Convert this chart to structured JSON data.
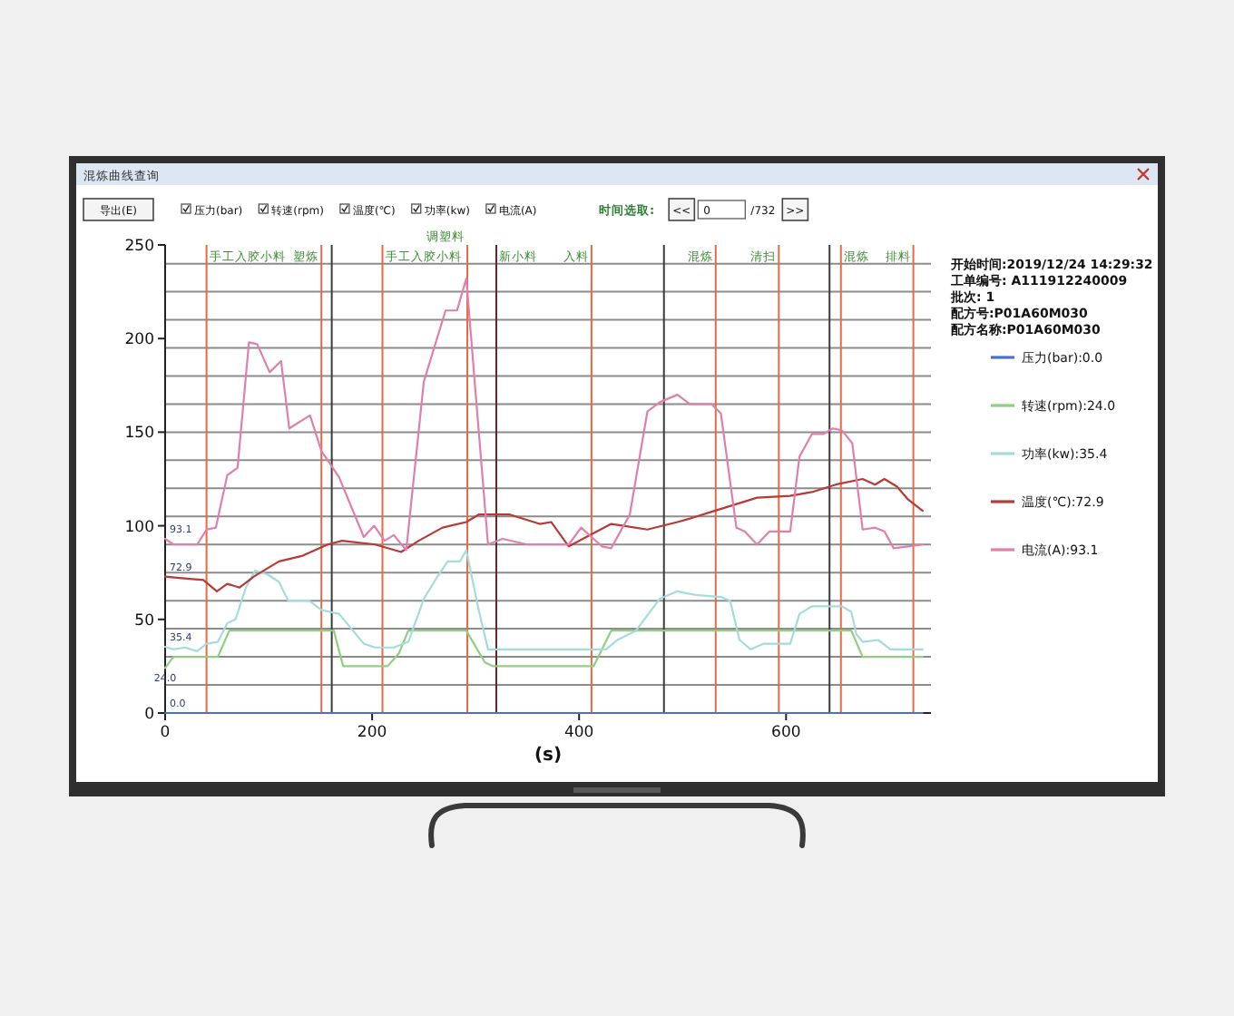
{
  "chart_data": {
    "type": "line",
    "title": "混炼曲线查询",
    "xlabel": "(s)",
    "xlim": [
      0,
      740
    ],
    "xticks": [
      0,
      200,
      400,
      600
    ],
    "ylim": [
      0,
      250
    ],
    "yticks": [
      0,
      50,
      100,
      150,
      200,
      250
    ],
    "legend": "right",
    "series": [
      {
        "name": "压力(bar):0.0",
        "color": "#4a6fd0",
        "x": [
          0,
          732
        ],
        "values": [
          0,
          0
        ]
      },
      {
        "name": "转速(rpm):24.0",
        "color": "#8fcf80",
        "x": [
          0,
          8,
          51,
          62,
          163,
          172,
          215,
          226,
          235,
          291,
          309,
          317,
          414,
          431,
          663,
          674,
          732
        ],
        "values": [
          24,
          30,
          30,
          44,
          44,
          25,
          25,
          32,
          44,
          44,
          27,
          25,
          25,
          44,
          44,
          30,
          30
        ]
      },
      {
        "name": "功率(kw):35.4",
        "color": "#a3dcdc",
        "x": [
          0,
          8,
          19,
          31,
          40,
          51,
          60,
          68,
          78,
          87,
          99,
          110,
          119,
          139,
          151,
          168,
          180,
          192,
          203,
          221,
          235,
          250,
          261,
          273,
          285,
          291,
          303,
          312,
          426,
          437,
          455,
          478,
          495,
          513,
          537,
          546,
          555,
          566,
          578,
          604,
          613,
          625,
          654,
          663,
          668,
          674,
          689,
          701,
          732
        ],
        "values": [
          35.4,
          34,
          35,
          33,
          37,
          38,
          48,
          50,
          67,
          76,
          74,
          70,
          60,
          60,
          55,
          53,
          45,
          37,
          35,
          35,
          38,
          61,
          71,
          81,
          81,
          87,
          55,
          34,
          34,
          39,
          44,
          61,
          65,
          63,
          62,
          60,
          39,
          34,
          37,
          37,
          53,
          57,
          57,
          54,
          42,
          38,
          39,
          34,
          34
        ]
      },
      {
        "name": "温度(℃):72.9",
        "color": "#b93a35",
        "x": [
          0,
          16,
          37,
          50,
          60,
          72,
          86,
          110,
          133,
          157,
          171,
          203,
          228,
          245,
          268,
          291,
          303,
          333,
          362,
          373,
          390,
          431,
          443,
          466,
          495,
          508,
          531,
          572,
          604,
          625,
          648,
          674,
          686,
          695,
          707,
          718,
          732
        ],
        "values": [
          72.9,
          72,
          71,
          65,
          69,
          67,
          73,
          81,
          84,
          90,
          92,
          90,
          86,
          92,
          99,
          102,
          106,
          106,
          101,
          102,
          89,
          101,
          100,
          98,
          102,
          104,
          108,
          115,
          116,
          118,
          122,
          125,
          122,
          125,
          121,
          114,
          108
        ]
      },
      {
        "name": "电流(A):93.1",
        "color": "#e07fab",
        "x": [
          0,
          8,
          31,
          40,
          49,
          60,
          70,
          81,
          89,
          101,
          112,
          120,
          140,
          151,
          168,
          192,
          202,
          212,
          221,
          233,
          250,
          271,
          282,
          291,
          312,
          326,
          350,
          390,
          402,
          414,
          422,
          431,
          449,
          466,
          478,
          495,
          507,
          528,
          537,
          552,
          560,
          572,
          584,
          604,
          613,
          625,
          636,
          645,
          654,
          664,
          674,
          686,
          695,
          704,
          718,
          732
        ],
        "values": [
          93.1,
          90,
          90,
          98,
          99,
          127,
          131,
          198,
          197,
          182,
          188,
          152,
          159,
          140,
          126,
          94,
          100,
          92,
          95,
          87,
          177,
          215,
          215,
          232,
          90,
          93,
          90,
          90,
          99,
          93,
          89,
          88,
          106,
          161,
          166,
          170,
          165,
          165,
          160,
          99,
          97,
          90,
          97,
          97,
          137,
          149,
          149,
          152,
          151,
          144,
          98,
          99,
          97,
          88,
          89,
          90
        ]
      }
    ],
    "ref_lines": [
      {
        "axis": "y",
        "value": 15,
        "color": "#8c8c8c"
      },
      {
        "axis": "y",
        "value": 30,
        "color": "#8c8c8c"
      },
      {
        "axis": "y",
        "value": 45,
        "color": "#8c8c8c"
      },
      {
        "axis": "y",
        "value": 60,
        "color": "#8c8c8c"
      },
      {
        "axis": "y",
        "value": 75,
        "color": "#8c8c8c"
      },
      {
        "axis": "y",
        "value": 90,
        "color": "#8c8c8c"
      },
      {
        "axis": "y",
        "value": 105,
        "color": "#8c8c8c"
      },
      {
        "axis": "y",
        "value": 120,
        "color": "#8c8c8c"
      },
      {
        "axis": "y",
        "value": 135,
        "color": "#8c8c8c"
      },
      {
        "axis": "y",
        "value": 150,
        "color": "#8c8c8c"
      },
      {
        "axis": "y",
        "value": 165,
        "color": "#8c8c8c"
      },
      {
        "axis": "y",
        "value": 180,
        "color": "#8c8c8c"
      },
      {
        "axis": "y",
        "value": 195,
        "color": "#8c8c8c"
      },
      {
        "axis": "y",
        "value": 210,
        "color": "#8c8c8c"
      },
      {
        "axis": "y",
        "value": 225,
        "color": "#8c8c8c"
      },
      {
        "axis": "y",
        "value": 240,
        "color": "#8c8c8c"
      },
      {
        "axis": "x",
        "value": 40,
        "label": "手工入胶小料",
        "color": "#e86a45"
      },
      {
        "axis": "x",
        "value": 151,
        "label": "塑炼",
        "color": "#e86a45"
      },
      {
        "axis": "x",
        "value": 161,
        "color": "#3c3c3c"
      },
      {
        "axis": "x",
        "value": 210,
        "label": "手工入胶小料",
        "color": "#e86a45"
      },
      {
        "axis": "x",
        "value": 292,
        "label": "调塑料",
        "color": "#e86a45"
      },
      {
        "axis": "x",
        "value": 320,
        "label": "新小料",
        "color": "#5a2a2a"
      },
      {
        "axis": "x",
        "value": 412,
        "label": "入料",
        "color": "#e86a45"
      },
      {
        "axis": "x",
        "value": 482,
        "color": "#3c3c3c"
      },
      {
        "axis": "x",
        "value": 532,
        "label": "混炼",
        "color": "#e86a45"
      },
      {
        "axis": "x",
        "value": 593,
        "label": "清扫",
        "color": "#e86a45"
      },
      {
        "axis": "x",
        "value": 642,
        "color": "#3c3c3c"
      },
      {
        "axis": "x",
        "value": 653,
        "label": "混炼",
        "color": "#e86a45"
      },
      {
        "axis": "x",
        "value": 723,
        "label": "排料",
        "color": "#e86a45"
      }
    ],
    "annotations": [
      "导出(E)",
      "压力(bar)",
      "转速(rpm)",
      "温度(℃)",
      "功率(kw)",
      "电流(A)",
      "时间选取:",
      "<<",
      "0",
      "/732",
      ">>",
      "开始时间:2019/12/24 14:29:32",
      "工单编号: A111912240009",
      "批次: 1",
      "配方号:P01A60M030",
      "配方名称:P01A60M030",
      {
        "text": "93.1",
        "y": 93.1
      },
      {
        "text": "72.9",
        "y": 72.9
      },
      {
        "text": "35.4",
        "y": 35.4
      },
      {
        "text": "24.0",
        "y": 24
      },
      {
        "text": "0.0",
        "y": 0
      }
    ]
  }
}
